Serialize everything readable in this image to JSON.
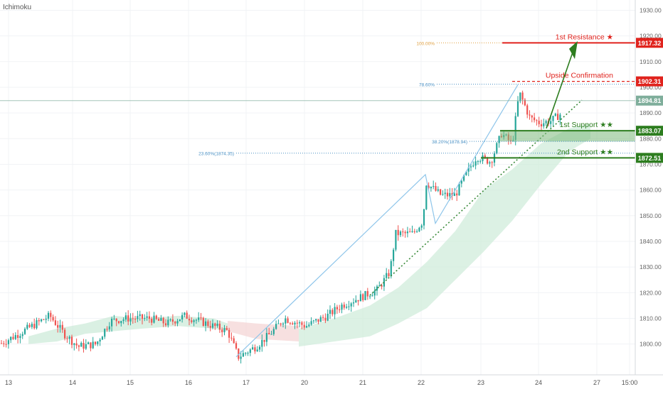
{
  "indicator_label": "Ichimoku",
  "colors": {
    "up": "#26a69a",
    "down": "#ef5350",
    "resistance": "#e0231d",
    "support": "#2d7d1f",
    "fib": "#4a90c4",
    "fib100": "#e0a040",
    "cloud_green": "#cdebd9",
    "cloud_red": "#f4d6d6",
    "last_price": "#7fae9b",
    "pattern": "#8ec5ea",
    "trend": "#3a8a3a"
  },
  "chart_data": {
    "type": "candlestick",
    "ylim": [
      1788,
      1934
    ],
    "y_ticks": [
      1800,
      1810,
      1820,
      1830,
      1840,
      1850,
      1860,
      1870,
      1880,
      1890,
      1900,
      1910,
      1920,
      1930
    ],
    "x_ticks": [
      "13",
      "14",
      "15",
      "16",
      "17",
      "20",
      "21",
      "22",
      "23",
      "24",
      "27",
      "15:00"
    ],
    "last_price": 1894.81,
    "levels": [
      {
        "name": "1st Resistance ★",
        "price": 1917.32,
        "label": "1917.32",
        "role": "resistance"
      },
      {
        "name": "Upside Confirmation",
        "price": 1902.31,
        "label": "1902.31",
        "role": "resistance"
      },
      {
        "name": "1st Support ★★",
        "price": 1883.07,
        "label": "1883.07",
        "role": "support"
      },
      {
        "name": "2nd Support ★★",
        "price": 1872.51,
        "label": "1872.51",
        "role": "support"
      }
    ],
    "fib_levels": [
      {
        "label": "100.00%",
        "price": 1917.32
      },
      {
        "label": "78.60%",
        "price": 1901.2
      },
      {
        "label": "38.20%(1878.94)",
        "price": 1878.94
      },
      {
        "label": "23.60%(1874.35)",
        "price": 1874.35
      }
    ]
  }
}
